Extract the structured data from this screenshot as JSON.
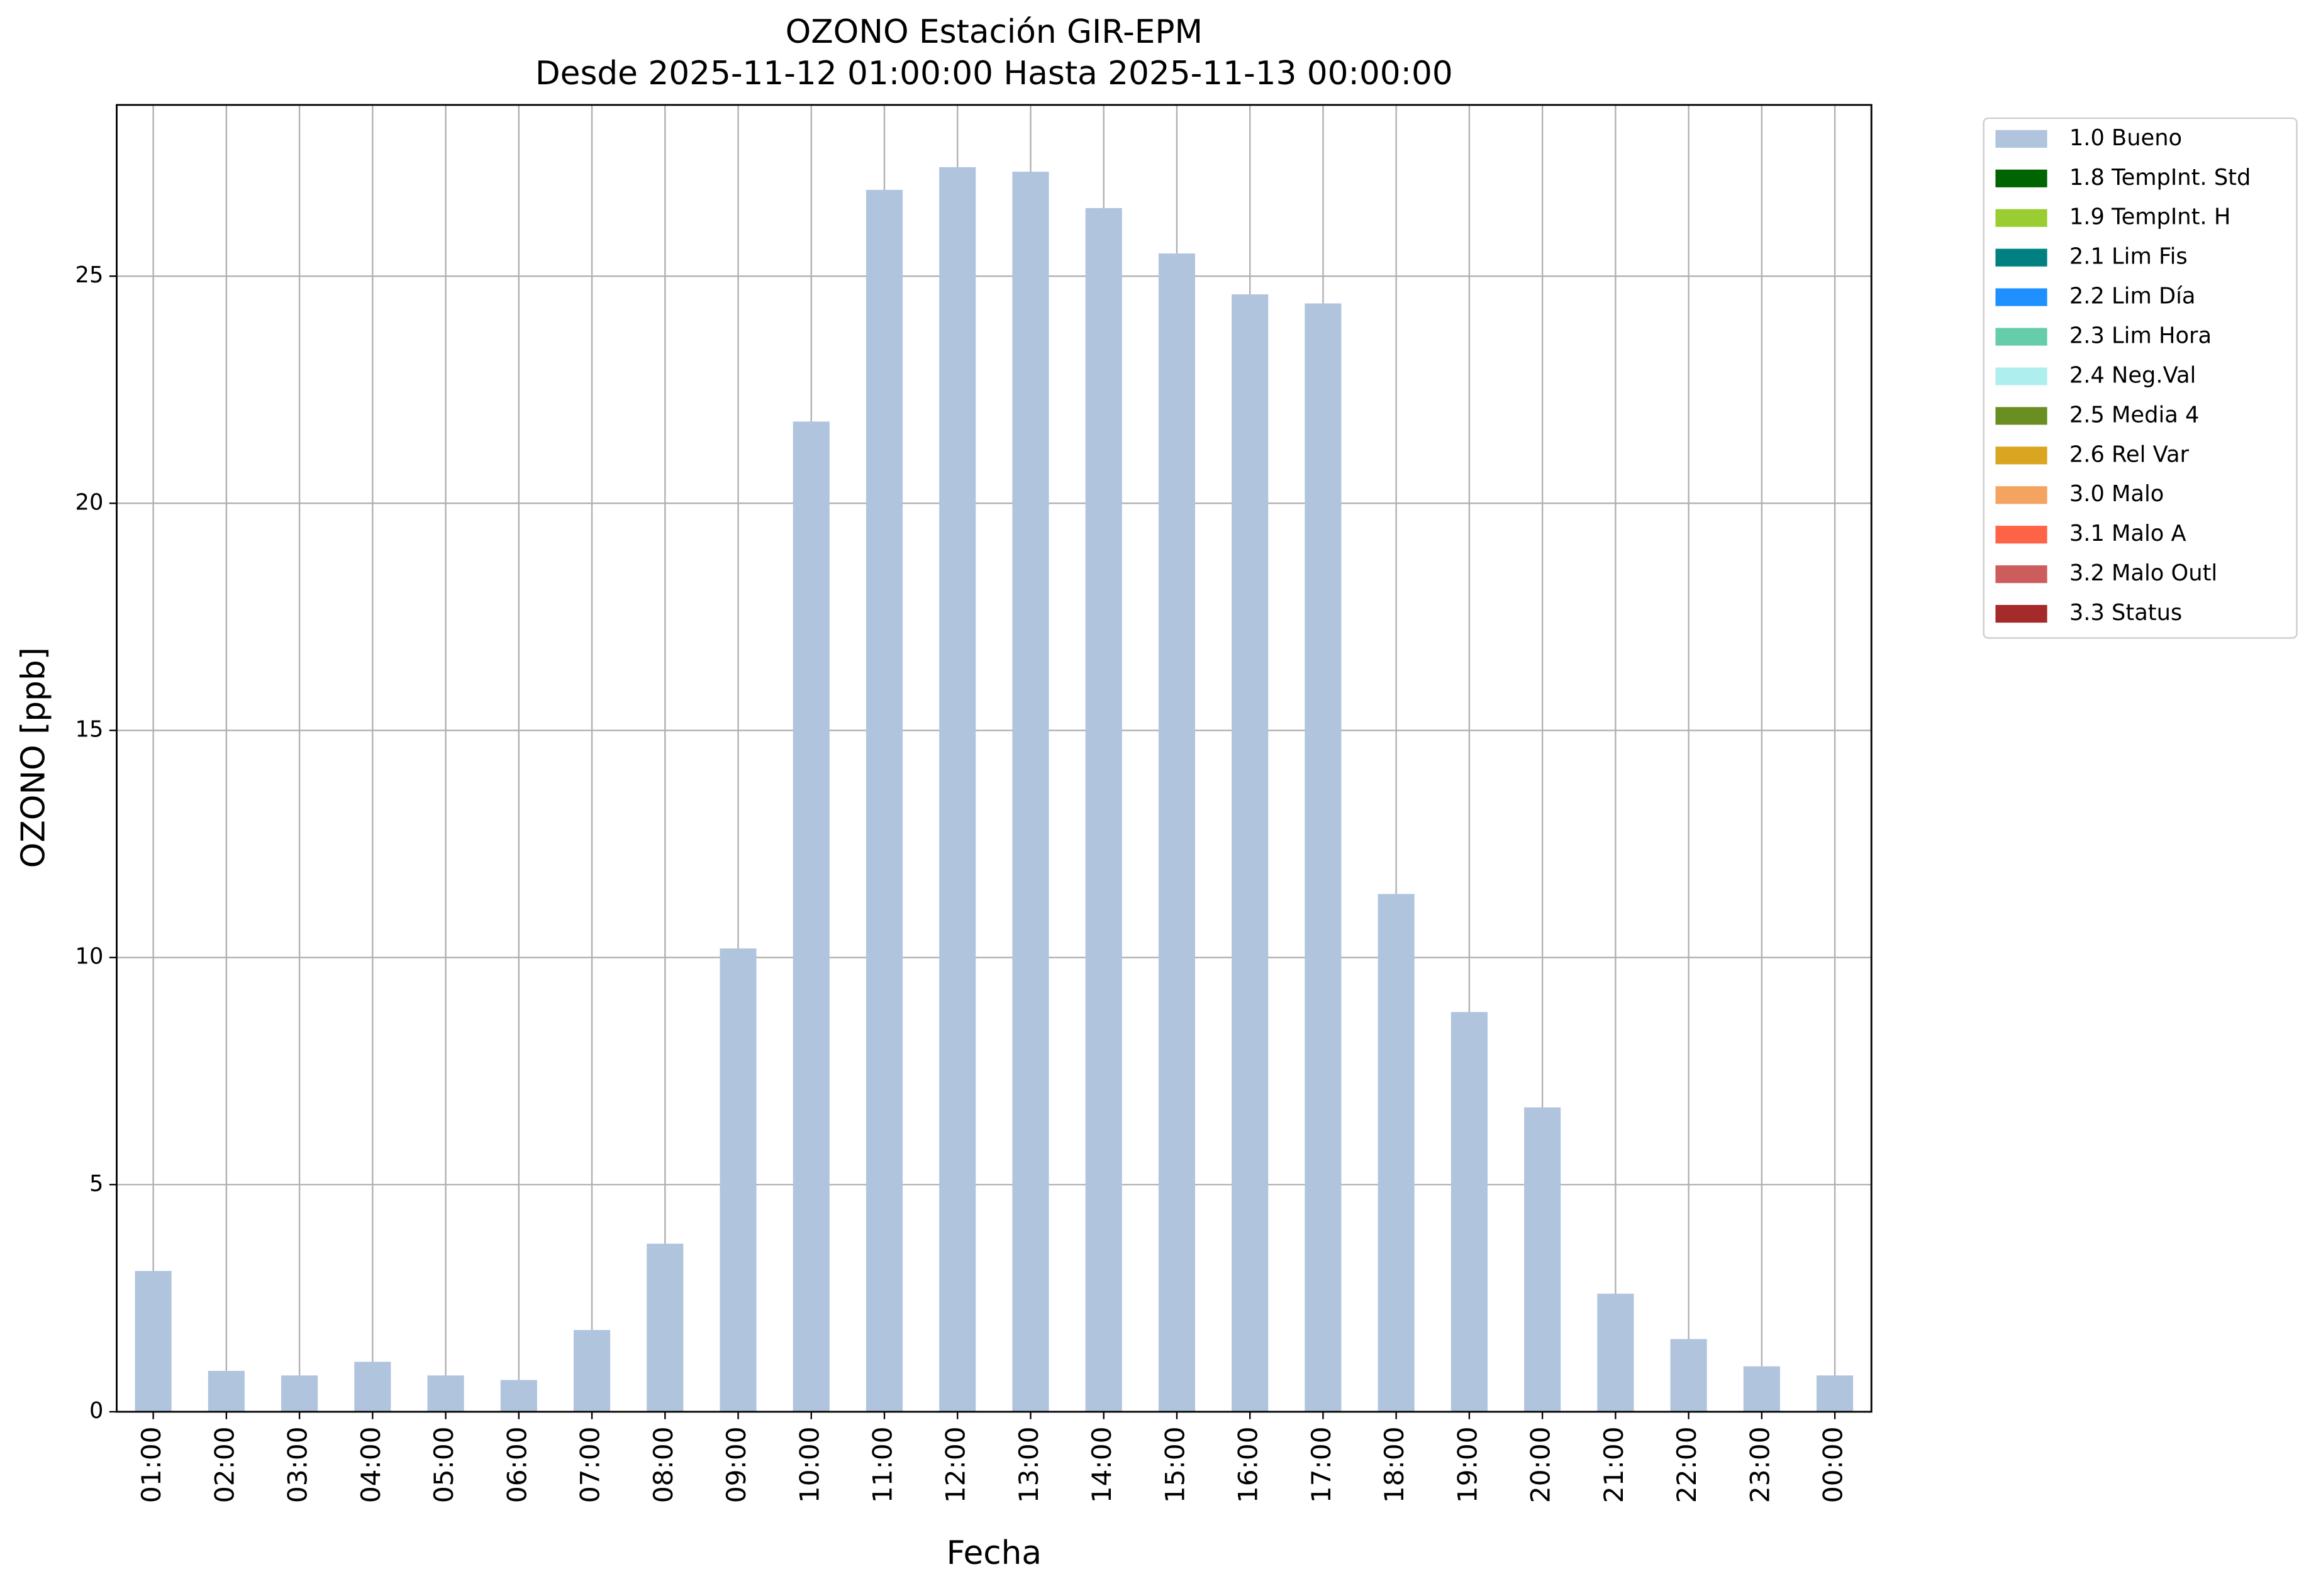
{
  "chart_data": {
    "type": "bar",
    "stacked": true,
    "title": "OZONO Estación GIR-EPM",
    "subtitle": "Desde 2025-11-12 01:00:00 Hasta 2025-11-13 00:00:00",
    "x_label": "Fecha",
    "y_label": "OZONO [ppb]",
    "categories": [
      "01:00",
      "02:00",
      "03:00",
      "04:00",
      "05:00",
      "06:00",
      "07:00",
      "08:00",
      "09:00",
      "10:00",
      "11:00",
      "12:00",
      "13:00",
      "14:00",
      "15:00",
      "16:00",
      "17:00",
      "18:00",
      "19:00",
      "20:00",
      "21:00",
      "22:00",
      "23:00",
      "00:00"
    ],
    "series": [
      {
        "name": "1.0 Bueno",
        "color": "#b0c4de",
        "values": [
          3.1,
          0.9,
          0.8,
          1.1,
          0.8,
          0.7,
          1.8,
          3.7,
          10.2,
          21.8,
          26.9,
          27.4,
          27.3,
          26.5,
          25.5,
          24.6,
          24.4,
          11.4,
          8.8,
          6.7,
          2.6,
          1.6,
          1.0,
          0.8
        ]
      },
      {
        "name": "1.8 TempInt. Std",
        "color": "#006400",
        "values": [
          0,
          0,
          0,
          0,
          0,
          0,
          0,
          0,
          0,
          0,
          0,
          0,
          0,
          0,
          0,
          0,
          0,
          0,
          0,
          0,
          0,
          0,
          0,
          0
        ]
      },
      {
        "name": "1.9 TempInt. H",
        "color": "#9acd32",
        "values": [
          0,
          0,
          0,
          0,
          0,
          0,
          0,
          0,
          0,
          0,
          0,
          0,
          0,
          0,
          0,
          0,
          0,
          0,
          0,
          0,
          0,
          0,
          0,
          0
        ]
      },
      {
        "name": "2.1 Lim Fis",
        "color": "#008080",
        "values": [
          0,
          0,
          0,
          0,
          0,
          0,
          0,
          0,
          0,
          0,
          0,
          0,
          0,
          0,
          0,
          0,
          0,
          0,
          0,
          0,
          0,
          0,
          0,
          0
        ]
      },
      {
        "name": "2.2 Lim Día",
        "color": "#1e90ff",
        "values": [
          0,
          0,
          0,
          0,
          0,
          0,
          0,
          0,
          0,
          0,
          0,
          0,
          0,
          0,
          0,
          0,
          0,
          0,
          0,
          0,
          0,
          0,
          0,
          0
        ]
      },
      {
        "name": "2.3 Lim Hora",
        "color": "#66cdaa",
        "values": [
          0,
          0,
          0,
          0,
          0,
          0,
          0,
          0,
          0,
          0,
          0,
          0,
          0,
          0,
          0,
          0,
          0,
          0,
          0,
          0,
          0,
          0,
          0,
          0
        ]
      },
      {
        "name": "2.4 Neg.Val",
        "color": "#afeeee",
        "values": [
          0,
          0,
          0,
          0,
          0,
          0,
          0,
          0,
          0,
          0,
          0,
          0,
          0,
          0,
          0,
          0,
          0,
          0,
          0,
          0,
          0,
          0,
          0,
          0
        ]
      },
      {
        "name": "2.5 Media 4",
        "color": "#6b8e23",
        "values": [
          0,
          0,
          0,
          0,
          0,
          0,
          0,
          0,
          0,
          0,
          0,
          0,
          0,
          0,
          0,
          0,
          0,
          0,
          0,
          0,
          0,
          0,
          0,
          0
        ]
      },
      {
        "name": "2.6 Rel Var",
        "color": "#daa520",
        "values": [
          0,
          0,
          0,
          0,
          0,
          0,
          0,
          0,
          0,
          0,
          0,
          0,
          0,
          0,
          0,
          0,
          0,
          0,
          0,
          0,
          0,
          0,
          0,
          0
        ]
      },
      {
        "name": "3.0 Malo",
        "color": "#f4a460",
        "values": [
          0,
          0,
          0,
          0,
          0,
          0,
          0,
          0,
          0,
          0,
          0,
          0,
          0,
          0,
          0,
          0,
          0,
          0,
          0,
          0,
          0,
          0,
          0,
          0
        ]
      },
      {
        "name": "3.1 Malo A",
        "color": "#ff6347",
        "values": [
          0,
          0,
          0,
          0,
          0,
          0,
          0,
          0,
          0,
          0,
          0,
          0,
          0,
          0,
          0,
          0,
          0,
          0,
          0,
          0,
          0,
          0,
          0,
          0
        ]
      },
      {
        "name": "3.2 Malo Outl",
        "color": "#cd5c5c",
        "values": [
          0,
          0,
          0,
          0,
          0,
          0,
          0,
          0,
          0,
          0,
          0,
          0,
          0,
          0,
          0,
          0,
          0,
          0,
          0,
          0,
          0,
          0,
          0,
          0
        ]
      },
      {
        "name": "3.3 Status",
        "color": "#a52a2a",
        "values": [
          0,
          0,
          0,
          0,
          0,
          0,
          0,
          0,
          0,
          0,
          0,
          0,
          0,
          0,
          0,
          0,
          0,
          0,
          0,
          0,
          0,
          0,
          0,
          0
        ]
      }
    ],
    "ylim": [
      0,
      28.77
    ],
    "yticks": [
      0,
      5,
      10,
      15,
      20,
      25
    ],
    "grid": true,
    "legend": "outside-upper-right"
  }
}
